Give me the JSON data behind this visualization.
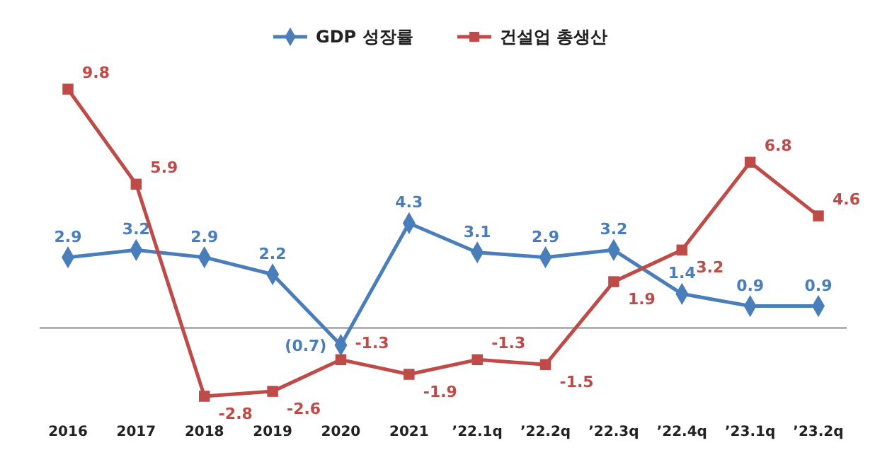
{
  "chart_data": {
    "type": "line",
    "categories": [
      "2016",
      "2017",
      "2018",
      "2019",
      "2020",
      "2021",
      "’22.1q",
      "’22.2q",
      "’22.3q",
      "’22.4q",
      "’23.1q",
      "’23.2q"
    ],
    "series": [
      {
        "name": "GDP 성장률",
        "color": "#4a7ebb",
        "marker": "diamond",
        "values": [
          2.9,
          3.2,
          2.9,
          2.2,
          -0.7,
          4.3,
          3.1,
          2.9,
          3.2,
          1.4,
          0.9,
          0.9
        ],
        "value_labels": [
          "2.9",
          "3.2",
          "2.9",
          "2.2",
          "(0.7)",
          "4.3",
          "3.1",
          "2.9",
          "3.2",
          "1.4",
          "0.9",
          "0.9"
        ]
      },
      {
        "name": "건설업 총생산",
        "color": "#be4b48",
        "marker": "square",
        "values": [
          9.8,
          5.9,
          -2.8,
          -2.6,
          -1.3,
          -1.9,
          -1.3,
          -1.5,
          1.9,
          3.2,
          6.8,
          4.6
        ],
        "value_labels": [
          "9.8",
          "5.9",
          "-2.8",
          "-2.6",
          "-1.3",
          "-1.9",
          "-1.3",
          "-1.5",
          "1.9",
          "3.2",
          "6.8",
          "4.6"
        ]
      }
    ],
    "legend": "top"
  }
}
